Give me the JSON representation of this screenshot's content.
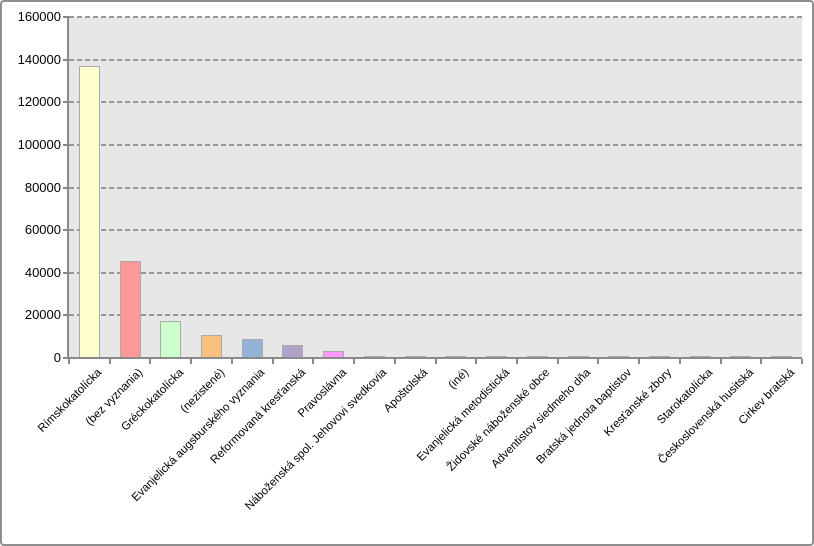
{
  "window": {
    "background": "#FFFFFF",
    "border_color": "#8E8E8E"
  },
  "chart_data": {
    "type": "bar",
    "title": "",
    "xlabel": "",
    "ylabel": "",
    "legend": "none",
    "grid": "horizontal-dashed",
    "plot_background": "#E7E7E7",
    "axis_color": "#8A8A8A",
    "gridline_color": "#979797",
    "bar_border_color": "#AAAAAA",
    "label_rotation_deg": 45,
    "ylim": [
      0,
      160000
    ],
    "y_ticks": [
      0,
      20000,
      40000,
      60000,
      80000,
      100000,
      120000,
      140000,
      160000
    ],
    "categories": [
      "Rímskokatolícka",
      "(bez vyznania)",
      "Gréckokatolícka",
      "(nezistené)",
      "Evanjelická augsburského vyznania",
      "Reformovaná kresťanská",
      "Pravoslávna",
      "Náboženská spol. Jehovovi svedkovia",
      "Apoštolská",
      "(iné)",
      "Evanjelická metodistická",
      "Židovské náboženské obce",
      "Adventistov siedmeho dňa",
      "Bratská jednota baptistov",
      "Kresťanské zbory",
      "Starokatolícka",
      "Československá husitská",
      "Cirkev bratská"
    ],
    "values": [
      137000,
      45400,
      17400,
      10800,
      8700,
      6000,
      3100,
      900,
      500,
      450,
      450,
      400,
      400,
      350,
      350,
      300,
      300,
      250
    ],
    "colors": [
      "#FFFFCC",
      "#FF9999",
      "#CCFFCC",
      "#FBC080",
      "#95B3D7",
      "#B3A2C7",
      "#FF99FF",
      "#5B84B5",
      "#C9C9C9",
      "#C9C9C9",
      "#C9C9C9",
      "#C9C9C9",
      "#C9C9C9",
      "#C9C9C9",
      "#C9C9C9",
      "#C9C9C9",
      "#C9C9C9",
      "#C9C9C9"
    ]
  }
}
